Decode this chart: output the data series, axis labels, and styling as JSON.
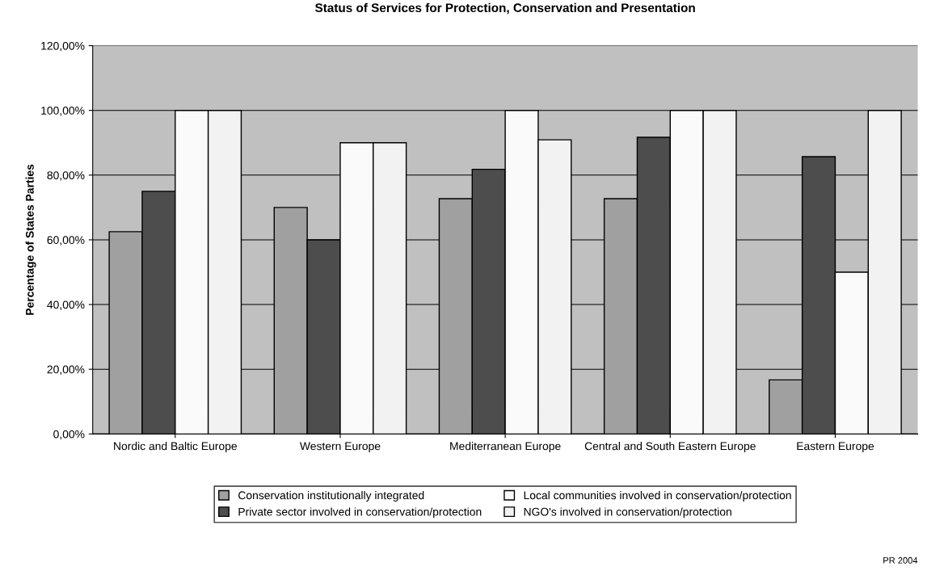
{
  "chart_data": {
    "type": "bar",
    "title": "Status of Services for Protection, Conservation and Presentation",
    "ylabel": "Percentage of States Parties",
    "categories": [
      "Nordic and Baltic Europe",
      "Western Europe",
      "Mediterranean Europe",
      "Central and South Eastern Europe",
      "Eastern Europe"
    ],
    "series": [
      {
        "name": "Conservation institutionally integrated",
        "color": "#a0a0a0",
        "values": [
          62.5,
          70,
          72.7,
          72.7,
          16.7
        ]
      },
      {
        "name": "Private sector involved in conservation/protection",
        "color": "#4d4d4d",
        "values": [
          75,
          60,
          81.8,
          91.7,
          85.7
        ]
      },
      {
        "name": "Local communities involved in conservation/protection",
        "color": "#fafafa",
        "values": [
          100,
          90,
          100,
          100,
          50
        ]
      },
      {
        "name": "NGO's involved in conservation/protection",
        "color": "#f2f2f2",
        "values": [
          100,
          90,
          90.9,
          100,
          100
        ]
      }
    ],
    "ylim": [
      0,
      120
    ],
    "yticks": [
      {
        "value": 0,
        "label": "0,00%"
      },
      {
        "value": 20,
        "label": "20,00%"
      },
      {
        "value": 40,
        "label": "40,00%"
      },
      {
        "value": 60,
        "label": "60,00%"
      },
      {
        "value": 80,
        "label": "80,00%"
      },
      {
        "value": 100,
        "label": "100,00%"
      },
      {
        "value": 120,
        "label": "120,00%"
      }
    ],
    "grid": "y",
    "legend": "bottom",
    "annotations": [
      "PR 2004"
    ]
  }
}
